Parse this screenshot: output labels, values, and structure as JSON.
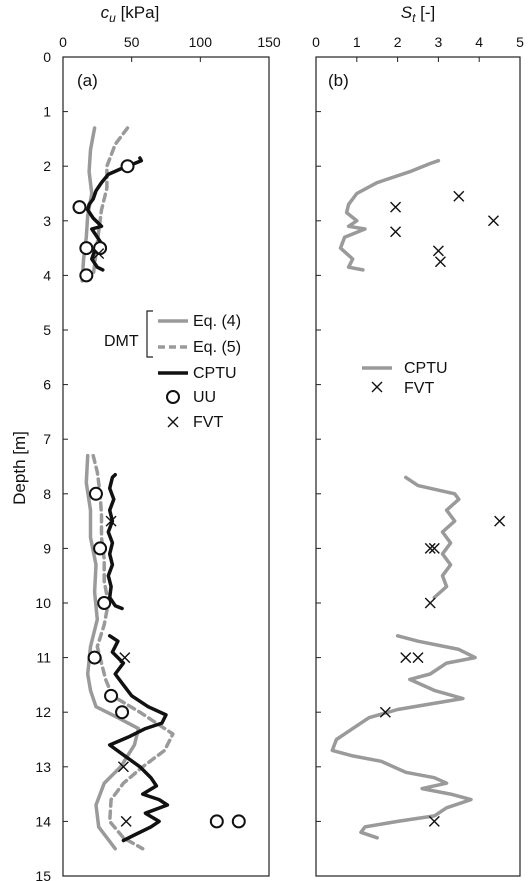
{
  "chart_data": [
    {
      "panel": "(a)",
      "type": "line",
      "xlabel_var": "c",
      "xlabel_sub": "u",
      "xlabel_unit": " [kPa]",
      "ylabel": "Depth [m]",
      "xlim": [
        0,
        150
      ],
      "ylim": [
        15,
        0
      ],
      "xticks": [
        0,
        50,
        100,
        150
      ],
      "yticks": [
        0,
        1,
        2,
        3,
        4,
        5,
        6,
        7,
        8,
        9,
        10,
        11,
        12,
        13,
        14,
        15
      ],
      "x_axis_position": "top",
      "grid": false,
      "legend": {
        "position": "center",
        "group_label": "DMT",
        "entries": [
          "Eq. (4)",
          "Eq. (5)",
          "CPTU",
          "UU",
          "FVT"
        ]
      },
      "series": [
        {
          "name": "Eq. (4)",
          "style": "solid",
          "color": "#9a9a9a",
          "segments": [
            [
              [
                23,
                1.3
              ],
              [
                20,
                1.7
              ],
              [
                19,
                2.1
              ],
              [
                21,
                2.5
              ],
              [
                18,
                2.9
              ],
              [
                17,
                3.3
              ],
              [
                15,
                3.7
              ],
              [
                14,
                4.1
              ]
            ],
            [
              [
                18,
                7.3
              ],
              [
                17,
                7.8
              ],
              [
                20,
                8.3
              ],
              [
                20,
                8.8
              ],
              [
                24,
                9.3
              ],
              [
                23,
                9.8
              ],
              [
                25,
                10.3
              ],
              [
                20,
                10.8
              ],
              [
                18,
                11.3
              ],
              [
                20,
                11.6
              ],
              [
                24,
                11.9
              ],
              [
                40,
                12.1
              ],
              [
                55,
                12.3
              ],
              [
                52,
                12.6
              ],
              [
                42,
                13.0
              ],
              [
                30,
                13.3
              ],
              [
                24,
                13.7
              ],
              [
                26,
                14.1
              ],
              [
                38,
                14.5
              ]
            ]
          ]
        },
        {
          "name": "Eq. (5)",
          "style": "dashed",
          "color": "#9a9a9a",
          "segments": [
            [
              [
                47,
                1.3
              ],
              [
                38,
                1.6
              ],
              [
                32,
                2.0
              ],
              [
                32,
                2.4
              ],
              [
                28,
                2.8
              ],
              [
                26,
                3.2
              ],
              [
                24,
                3.6
              ],
              [
                22,
                4.0
              ]
            ],
            [
              [
                22,
                7.3
              ],
              [
                25,
                7.6
              ],
              [
                27,
                8.0
              ],
              [
                28,
                8.4
              ],
              [
                28,
                8.8
              ],
              [
                30,
                9.2
              ],
              [
                30,
                9.6
              ],
              [
                33,
                10.0
              ],
              [
                30,
                10.4
              ],
              [
                25,
                10.8
              ],
              [
                28,
                11.1
              ],
              [
                31,
                11.4
              ],
              [
                36,
                11.7
              ],
              [
                56,
                12.0
              ],
              [
                68,
                12.2
              ],
              [
                80,
                12.4
              ],
              [
                74,
                12.7
              ],
              [
                58,
                13.0
              ],
              [
                44,
                13.3
              ],
              [
                35,
                13.6
              ],
              [
                34,
                14.0
              ],
              [
                44,
                14.3
              ],
              [
                58,
                14.5
              ]
            ]
          ]
        },
        {
          "name": "CPTU",
          "style": "solid",
          "color": "#111111",
          "segments": [
            [
              [
                56,
                1.85
              ],
              [
                57,
                1.9
              ],
              [
                52,
                1.95
              ],
              [
                42,
                2.05
              ],
              [
                33,
                2.15
              ],
              [
                28,
                2.3
              ],
              [
                24,
                2.45
              ],
              [
                22,
                2.6
              ],
              [
                19,
                2.7
              ],
              [
                18,
                2.8
              ],
              [
                22,
                2.95
              ],
              [
                28,
                3.1
              ],
              [
                21,
                3.15
              ],
              [
                25,
                3.3
              ],
              [
                29,
                3.45
              ],
              [
                23,
                3.55
              ],
              [
                21,
                3.7
              ],
              [
                25,
                3.85
              ],
              [
                29,
                3.9
              ]
            ],
            [
              [
                38,
                7.65
              ],
              [
                36,
                7.7
              ],
              [
                34,
                7.9
              ],
              [
                37,
                8.1
              ],
              [
                34,
                8.3
              ],
              [
                36,
                8.5
              ],
              [
                33,
                8.7
              ],
              [
                36,
                8.9
              ],
              [
                34,
                9.1
              ],
              [
                36,
                9.3
              ],
              [
                33,
                9.5
              ],
              [
                35,
                9.7
              ],
              [
                34,
                9.9
              ],
              [
                38,
                10.05
              ],
              [
                43,
                10.1
              ]
            ],
            [
              [
                34,
                10.6
              ],
              [
                40,
                10.7
              ],
              [
                36,
                10.9
              ],
              [
                44,
                11.1
              ],
              [
                38,
                11.3
              ],
              [
                44,
                11.5
              ],
              [
                50,
                11.7
              ],
              [
                62,
                11.9
              ],
              [
                75,
                12.05
              ],
              [
                72,
                12.2
              ],
              [
                60,
                12.3
              ],
              [
                48,
                12.45
              ],
              [
                34,
                12.6
              ],
              [
                45,
                12.8
              ],
              [
                56,
                13.0
              ],
              [
                64,
                13.2
              ],
              [
                68,
                13.35
              ],
              [
                58,
                13.5
              ],
              [
                70,
                13.6
              ],
              [
                76,
                13.7
              ],
              [
                60,
                13.85
              ],
              [
                70,
                14.0
              ],
              [
                64,
                14.1
              ],
              [
                52,
                14.25
              ],
              [
                44,
                14.35
              ]
            ]
          ]
        }
      ],
      "points": {
        "UU": [
          [
            47,
            2.0
          ],
          [
            12,
            2.75
          ],
          [
            27,
            3.5
          ],
          [
            17,
            3.5
          ],
          [
            17,
            4.0
          ],
          [
            24,
            8.0
          ],
          [
            27,
            9.0
          ],
          [
            30,
            10.0
          ],
          [
            23,
            11.0
          ],
          [
            35,
            11.7
          ],
          [
            43,
            12.0
          ],
          [
            112,
            14.0
          ],
          [
            128,
            14.0
          ]
        ],
        "FVT": [
          [
            26,
            3.6
          ],
          [
            35,
            8.5
          ],
          [
            45,
            11.0
          ],
          [
            44,
            13.0
          ],
          [
            46,
            14.0
          ]
        ]
      }
    },
    {
      "panel": "(b)",
      "type": "line",
      "xlabel_var": "S",
      "xlabel_sub": "t",
      "xlabel_unit": " [-]",
      "xlim": [
        0,
        5
      ],
      "ylim": [
        15,
        0
      ],
      "xticks": [
        0,
        1,
        2,
        3,
        4,
        5
      ],
      "x_axis_position": "top",
      "grid": false,
      "legend": {
        "position": "center",
        "entries": [
          "CPTU",
          "FVT"
        ]
      },
      "series": [
        {
          "name": "CPTU",
          "style": "solid",
          "color": "#9a9a9a",
          "segments": [
            [
              [
                3.0,
                1.9
              ],
              [
                2.8,
                1.95
              ],
              [
                2.3,
                2.1
              ],
              [
                1.5,
                2.3
              ],
              [
                1.0,
                2.5
              ],
              [
                0.8,
                2.7
              ],
              [
                0.75,
                2.85
              ],
              [
                1.0,
                3.0
              ],
              [
                0.8,
                3.1
              ],
              [
                1.2,
                3.15
              ],
              [
                0.7,
                3.3
              ],
              [
                0.6,
                3.5
              ],
              [
                0.9,
                3.7
              ],
              [
                0.8,
                3.85
              ],
              [
                1.15,
                3.9
              ]
            ],
            [
              [
                2.2,
                7.7
              ],
              [
                2.5,
                7.85
              ],
              [
                3.4,
                8.0
              ],
              [
                3.5,
                8.1
              ],
              [
                3.2,
                8.3
              ],
              [
                3.4,
                8.5
              ],
              [
                3.1,
                8.7
              ],
              [
                3.3,
                8.9
              ],
              [
                3.1,
                9.1
              ],
              [
                3.3,
                9.3
              ],
              [
                3.1,
                9.5
              ],
              [
                3.2,
                9.7
              ],
              [
                2.9,
                9.9
              ]
            ],
            [
              [
                2.0,
                10.6
              ],
              [
                2.5,
                10.7
              ],
              [
                3.5,
                10.85
              ],
              [
                3.9,
                11.0
              ],
              [
                3.2,
                11.1
              ],
              [
                2.8,
                11.3
              ],
              [
                2.3,
                11.4
              ],
              [
                2.9,
                11.6
              ],
              [
                3.6,
                11.75
              ],
              [
                2.8,
                11.85
              ],
              [
                2.0,
                11.95
              ],
              [
                1.3,
                12.1
              ],
              [
                0.9,
                12.3
              ],
              [
                0.5,
                12.5
              ],
              [
                0.4,
                12.7
              ],
              [
                0.9,
                12.8
              ],
              [
                1.6,
                12.9
              ],
              [
                2.2,
                13.1
              ],
              [
                2.9,
                13.2
              ],
              [
                3.2,
                13.3
              ],
              [
                2.6,
                13.4
              ],
              [
                3.3,
                13.5
              ],
              [
                3.8,
                13.6
              ],
              [
                3.2,
                13.75
              ],
              [
                2.9,
                13.9
              ],
              [
                2.0,
                14.0
              ],
              [
                1.2,
                14.1
              ],
              [
                1.1,
                14.2
              ],
              [
                1.5,
                14.3
              ]
            ]
          ]
        }
      ],
      "points": {
        "FVT": [
          [
            3.5,
            2.55
          ],
          [
            1.95,
            2.75
          ],
          [
            4.35,
            3.0
          ],
          [
            1.95,
            3.2
          ],
          [
            3.0,
            3.55
          ],
          [
            3.05,
            3.75
          ],
          [
            4.5,
            8.5
          ],
          [
            2.8,
            9.0
          ],
          [
            2.9,
            9.0
          ],
          [
            2.8,
            10.0
          ],
          [
            2.2,
            11.0
          ],
          [
            2.5,
            11.0
          ],
          [
            1.7,
            12.0
          ],
          [
            2.9,
            14.0
          ]
        ]
      }
    }
  ]
}
